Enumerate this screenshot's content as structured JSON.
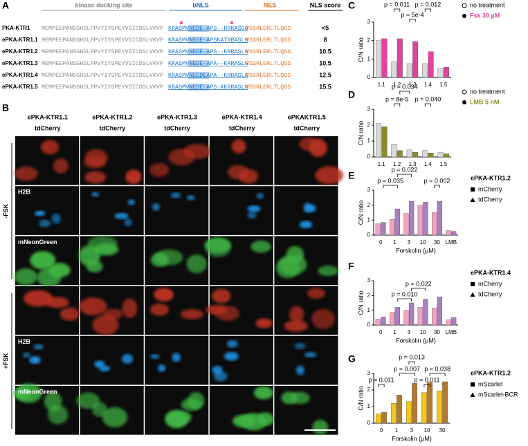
{
  "panel_a": {
    "label": "A",
    "headers": {
      "docking": "kinase docking site",
      "bnls": "bNLS",
      "nes": "NES",
      "score": "NLS score"
    },
    "rows": [
      {
        "name": "PKA-KTR1",
        "dock": "MEMPEEPANSGHSLPPVYIYSPEYVSICDSLVKVP",
        "bnls": "KRASMVNEDE-APS--RRKASGQ",
        "nes": "VSSRLERLTLQSS",
        "score": "<5"
      },
      {
        "name": "ePKA-KTR1.1",
        "dock": "MEMPEEPANSGHSLPPVYIYSPEYVSICDSLVKVP",
        "bnls": "KRASMVNEDE-APSKATRRASLG",
        "nes": "VSSRLERLTLQSS",
        "score": 8
      },
      {
        "name": "ePKA-KTR1.2",
        "dock": "MEMPEEPANSGHSLPPVYIYSPEYVSICDSLVKVP",
        "bnls": "KRASMVNEDE-APS--KRRASLG",
        "nes": "VSSRLERLTLQSS",
        "score": 10.5
      },
      {
        "name": "ePKA-KTR1.3",
        "dock": "MEMPEEPANSGHSLPPVYIYSPEYVSICDSLVKVP",
        "bnls": "KRASMVNEDE-APA--KRRASLG",
        "nes": "VSSRLERLTLQSS",
        "score": 10.5
      },
      {
        "name": "ePKA-KTR1.4",
        "dock": "MEMPEEPANSGHSLPPVYIYSPEYVSICDSLVKVP",
        "bnls": "KRASMVNEEDEAPA--KRRASLG",
        "nes": "VSSRLERLTLQSS",
        "score": 12.5
      },
      {
        "name": "ePKA-KTR1.5",
        "dock": "MEMPEEPANSGHSLPPVYIYSPEYVSICDSLVKVP",
        "bnls": "KRASMVNEDE-APS-KKRRASLG",
        "nes": "VSSRLERLTLQSS",
        "score": 15.5
      }
    ]
  },
  "panel_b": {
    "label": "B",
    "columns": [
      {
        "name": "ePKA-KTR1.1",
        "fp": "tdCherry"
      },
      {
        "name": "ePKA-KTR1.2",
        "fp": "tdCherry"
      },
      {
        "name": "ePKA-KTR1.3",
        "fp": "tdCherry"
      },
      {
        "name": "ePKA-KTR1.4",
        "fp": "tdCherry"
      },
      {
        "name": "ePKAKTR1.5",
        "fp": "tdCherry"
      }
    ],
    "conditions": [
      "-FSK",
      "+FSK"
    ],
    "channels": [
      "H2B",
      "mNeonGreen"
    ]
  },
  "chart_data": [
    {
      "type": "bar",
      "panel": "C",
      "ylabel": "C/N ratio",
      "categories": [
        "1.1",
        "1.2",
        "1.3",
        "1.4",
        "1.5"
      ],
      "series": [
        {
          "name": "no treatment",
          "color": "#d9d9d9",
          "values": [
            2.0,
            0.85,
            0.75,
            0.75,
            0.5
          ]
        },
        {
          "name": "Fsk 30 µM",
          "color": "#e0449a",
          "values": [
            2.1,
            2.1,
            1.95,
            1.4,
            0.55
          ]
        }
      ],
      "ylim": [
        0,
        3
      ],
      "yticks": [
        0,
        1,
        2,
        3
      ],
      "annotations": [
        "p = 0.011",
        "p = 5e-4",
        "p = 0.012"
      ]
    },
    {
      "type": "bar",
      "panel": "D",
      "ylabel": "C/N ratio",
      "categories": [
        "1.1",
        "1.2",
        "1.3",
        "1.4",
        "1.5"
      ],
      "series": [
        {
          "name": "no treatment",
          "color": "#d9d9d9",
          "values": [
            2.1,
            0.8,
            0.45,
            0.4,
            0.3
          ]
        },
        {
          "name": "LMB 5 nM",
          "color": "#8b8b2b",
          "values": [
            1.9,
            0.4,
            0.3,
            0.25,
            0.2
          ]
        }
      ],
      "ylim": [
        0,
        3
      ],
      "yticks": [
        0,
        1,
        2,
        3
      ],
      "annotations": [
        "p = 8e-5",
        "p = 0.034",
        "p = 0.040"
      ]
    },
    {
      "type": "bar",
      "panel": "E",
      "ylabel": "C/N ratio",
      "xlabel": "Forskolin (µM)",
      "legend_title": "ePKA-KTR1.2",
      "categories": [
        "0",
        "1",
        "3",
        "10",
        "30",
        "LMB"
      ],
      "series": [
        {
          "name": "mCherry",
          "color": "#f4a3c4",
          "values": [
            0.75,
            1.05,
            1.45,
            2.0,
            1.5,
            0.3
          ]
        },
        {
          "name": "tdCherry",
          "color": "#a97fc0",
          "values": [
            0.85,
            1.75,
            2.25,
            2.2,
            2.25,
            0.25
          ]
        }
      ],
      "ylim": [
        0,
        3
      ],
      "yticks": [
        0,
        1,
        2,
        3
      ],
      "annotations": [
        "p = 0.035",
        "p = 0.022",
        "p = 0.002"
      ]
    },
    {
      "type": "bar",
      "panel": "F",
      "ylabel": "C/N ratio",
      "xlabel": "Forskolin (µM)",
      "legend_title": "ePKA-KTR1.4",
      "categories": [
        "0",
        "1",
        "3",
        "10",
        "30",
        "LMB"
      ],
      "series": [
        {
          "name": "mCherry",
          "color": "#f4a3c4",
          "values": [
            0.4,
            0.85,
            1.0,
            1.2,
            1.15,
            0.35
          ]
        },
        {
          "name": "tdCherry",
          "color": "#a97fc0",
          "values": [
            0.55,
            1.2,
            1.5,
            1.75,
            1.9,
            0.5
          ]
        }
      ],
      "ylim": [
        0,
        3
      ],
      "yticks": [
        0,
        1,
        2,
        3
      ],
      "annotations": [
        "p = 0.010",
        "p = 0.022"
      ]
    },
    {
      "type": "bar",
      "panel": "G",
      "ylabel": "C/N ratio",
      "xlabel": "Forskolin (µM)",
      "legend_title": "ePKA-KTR1.2",
      "categories": [
        "0",
        "1",
        "3",
        "10",
        "30"
      ],
      "series": [
        {
          "name": "mScarlet",
          "color": "#f5c518",
          "values": [
            0.55,
            1.2,
            1.3,
            1.85,
            1.95
          ]
        },
        {
          "name": "mScarlet-BCR",
          "color": "#b07a30",
          "values": [
            0.65,
            1.7,
            2.4,
            2.45,
            2.5
          ]
        }
      ],
      "ylim": [
        0,
        3
      ],
      "yticks": [
        0,
        1,
        2,
        3
      ],
      "annotations": [
        "p = 0.011",
        "p = 0.007",
        "p = 0.013",
        "p = 0.011",
        "p = 0.038"
      ]
    }
  ]
}
